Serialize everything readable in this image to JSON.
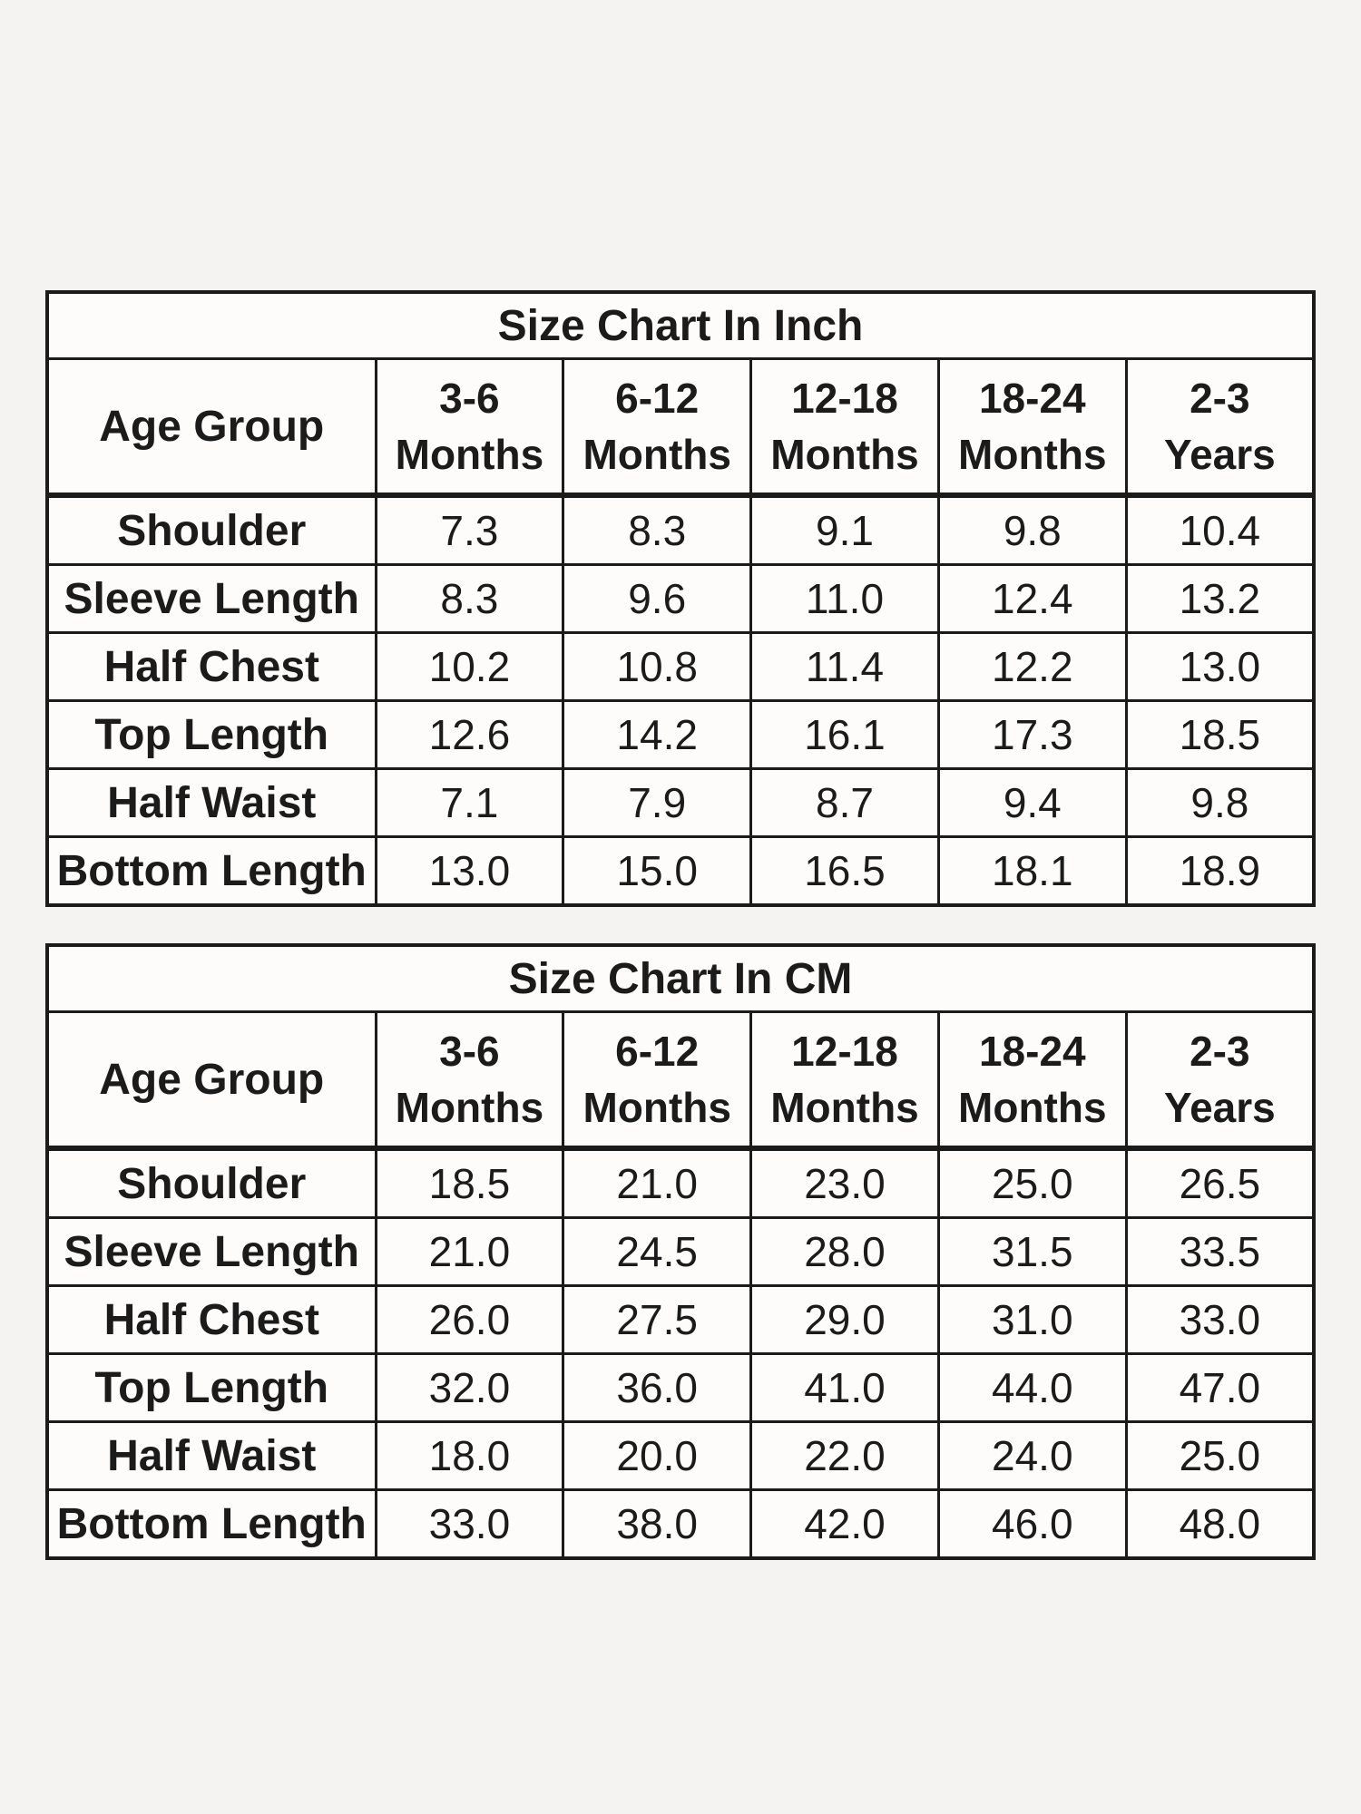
{
  "page": {
    "background_color": "#f4f3f2",
    "cell_color": "#fdfcfb",
    "border_color": "#1b1b1b",
    "text_color": "#1b1b1b"
  },
  "chart_data": [
    {
      "type": "table",
      "title": "Size Chart In Inch",
      "corner_label": "Age Group",
      "col_headers": [
        {
          "line1": "3-6",
          "line2": "Months"
        },
        {
          "line1": "6-12",
          "line2": "Months"
        },
        {
          "line1": "12-18",
          "line2": "Months"
        },
        {
          "line1": "18-24",
          "line2": "Months"
        },
        {
          "line1": "2-3",
          "line2": "Years"
        }
      ],
      "rows": [
        {
          "label": "Shoulder",
          "values": [
            "7.3",
            "8.3",
            "9.1",
            "9.8",
            "10.4"
          ]
        },
        {
          "label": "Sleeve Length",
          "values": [
            "8.3",
            "9.6",
            "11.0",
            "12.4",
            "13.2"
          ]
        },
        {
          "label": "Half Chest",
          "values": [
            "10.2",
            "10.8",
            "11.4",
            "12.2",
            "13.0"
          ]
        },
        {
          "label": "Top Length",
          "values": [
            "12.6",
            "14.2",
            "16.1",
            "17.3",
            "18.5"
          ]
        },
        {
          "label": "Half Waist",
          "values": [
            "7.1",
            "7.9",
            "8.7",
            "9.4",
            "9.8"
          ]
        },
        {
          "label": "Bottom Length",
          "values": [
            "13.0",
            "15.0",
            "16.5",
            "18.1",
            "18.9"
          ]
        }
      ]
    },
    {
      "type": "table",
      "title": "Size Chart In CM",
      "corner_label": "Age Group",
      "col_headers": [
        {
          "line1": "3-6",
          "line2": "Months"
        },
        {
          "line1": "6-12",
          "line2": "Months"
        },
        {
          "line1": "12-18",
          "line2": "Months"
        },
        {
          "line1": "18-24",
          "line2": "Months"
        },
        {
          "line1": "2-3",
          "line2": "Years"
        }
      ],
      "rows": [
        {
          "label": "Shoulder",
          "values": [
            "18.5",
            "21.0",
            "23.0",
            "25.0",
            "26.5"
          ]
        },
        {
          "label": "Sleeve Length",
          "values": [
            "21.0",
            "24.5",
            "28.0",
            "31.5",
            "33.5"
          ]
        },
        {
          "label": "Half Chest",
          "values": [
            "26.0",
            "27.5",
            "29.0",
            "31.0",
            "33.0"
          ]
        },
        {
          "label": "Top Length",
          "values": [
            "32.0",
            "36.0",
            "41.0",
            "44.0",
            "47.0"
          ]
        },
        {
          "label": "Half Waist",
          "values": [
            "18.0",
            "20.0",
            "22.0",
            "24.0",
            "25.0"
          ]
        },
        {
          "label": "Bottom Length",
          "values": [
            "33.0",
            "38.0",
            "42.0",
            "46.0",
            "48.0"
          ]
        }
      ]
    }
  ]
}
